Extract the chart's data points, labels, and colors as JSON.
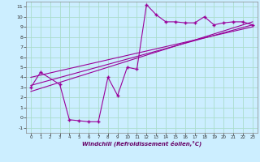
{
  "title": "",
  "xlabel": "Windchill (Refroidissement éolien,°C)",
  "background_color": "#cceeff",
  "grid_color": "#aaddcc",
  "line_color": "#990099",
  "xlim": [
    -0.5,
    23.5
  ],
  "ylim": [
    -1.5,
    11.5
  ],
  "xticks": [
    0,
    1,
    2,
    3,
    4,
    5,
    6,
    7,
    8,
    9,
    10,
    11,
    12,
    13,
    14,
    15,
    16,
    17,
    18,
    19,
    20,
    21,
    22,
    23
  ],
  "yticks": [
    -1,
    0,
    1,
    2,
    3,
    4,
    5,
    6,
    7,
    8,
    9,
    10,
    11
  ],
  "data_x": [
    0,
    1,
    3,
    4,
    5,
    6,
    7,
    8,
    9,
    10,
    11,
    12,
    13,
    14,
    15,
    16,
    17,
    18,
    19,
    20,
    21,
    22,
    23
  ],
  "data_y": [
    3.0,
    4.5,
    3.3,
    -0.2,
    -0.3,
    -0.4,
    -0.4,
    4.0,
    2.2,
    5.0,
    4.8,
    11.2,
    10.2,
    9.5,
    9.5,
    9.4,
    9.4,
    10.0,
    9.2,
    9.4,
    9.5,
    9.5,
    9.2
  ],
  "trend1_x": [
    0,
    23
  ],
  "trend1_y": [
    3.2,
    9.2
  ],
  "trend2_x": [
    0,
    23
  ],
  "trend2_y": [
    2.6,
    9.5
  ],
  "trend3_x": [
    0,
    23
  ],
  "trend3_y": [
    4.0,
    9.0
  ]
}
